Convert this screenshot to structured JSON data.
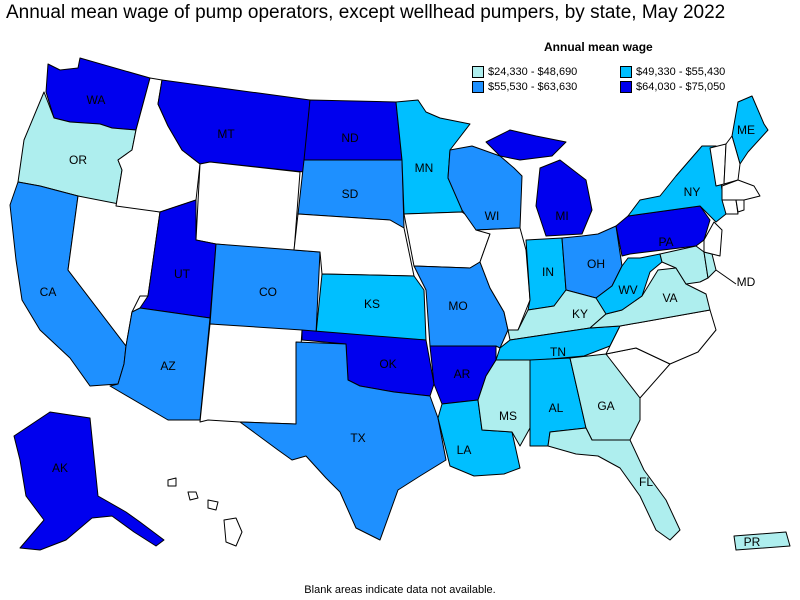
{
  "title": "Annual mean wage of pump operators, except wellhead pumpers, by state, May 2022",
  "legend": {
    "title": "Annual mean wage",
    "items": [
      {
        "label": "$24,330 - $48,690",
        "color": "#aeeeee"
      },
      {
        "label": "$49,330 - $55,430",
        "color": "#00bfff"
      },
      {
        "label": "$55,530 - $63,630",
        "color": "#1e90ff"
      },
      {
        "label": "$64,030 - $75,050",
        "color": "#0000ee"
      }
    ]
  },
  "colors": {
    "no_data": "#ffffff"
  },
  "states": {
    "WA": {
      "tier": 3
    },
    "OR": {
      "tier": 0
    },
    "CA": {
      "tier": 2
    },
    "NV": {
      "tier": -1
    },
    "ID": {
      "tier": -1
    },
    "MT": {
      "tier": 3
    },
    "WY": {
      "tier": -1
    },
    "UT": {
      "tier": 3
    },
    "AZ": {
      "tier": 2
    },
    "CO": {
      "tier": 2
    },
    "NM": {
      "tier": -1
    },
    "ND": {
      "tier": 3
    },
    "SD": {
      "tier": 2
    },
    "NE": {
      "tier": -1
    },
    "KS": {
      "tier": 1
    },
    "OK": {
      "tier": 3
    },
    "TX": {
      "tier": 2
    },
    "MN": {
      "tier": 1
    },
    "IA": {
      "tier": -1
    },
    "MO": {
      "tier": 2
    },
    "AR": {
      "tier": 3
    },
    "LA": {
      "tier": 1
    },
    "WI": {
      "tier": 2
    },
    "IL": {
      "tier": -1
    },
    "MI": {
      "tier": 3
    },
    "IN": {
      "tier": 1
    },
    "OH": {
      "tier": 2
    },
    "KY": {
      "tier": 0
    },
    "TN": {
      "tier": 1
    },
    "MS": {
      "tier": 0
    },
    "AL": {
      "tier": 1
    },
    "GA": {
      "tier": 0
    },
    "FL": {
      "tier": 0
    },
    "SC": {
      "tier": -1
    },
    "NC": {
      "tier": -1
    },
    "VA": {
      "tier": 0
    },
    "WV": {
      "tier": 1
    },
    "PA": {
      "tier": 3
    },
    "NY": {
      "tier": 1
    },
    "ME": {
      "tier": 1
    },
    "NJ": {
      "tier": -1
    },
    "MD": {
      "tier": 0
    },
    "DE": {
      "tier": 0
    },
    "VT": {
      "tier": -1
    },
    "NH": {
      "tier": -1
    },
    "MA": {
      "tier": -1
    },
    "CT": {
      "tier": -1
    },
    "RI": {
      "tier": -1
    },
    "AK": {
      "tier": 3
    },
    "HI": {
      "tier": -1
    },
    "PR": {
      "tier": 0
    }
  },
  "footnote": "Blank areas indicate data not available."
}
